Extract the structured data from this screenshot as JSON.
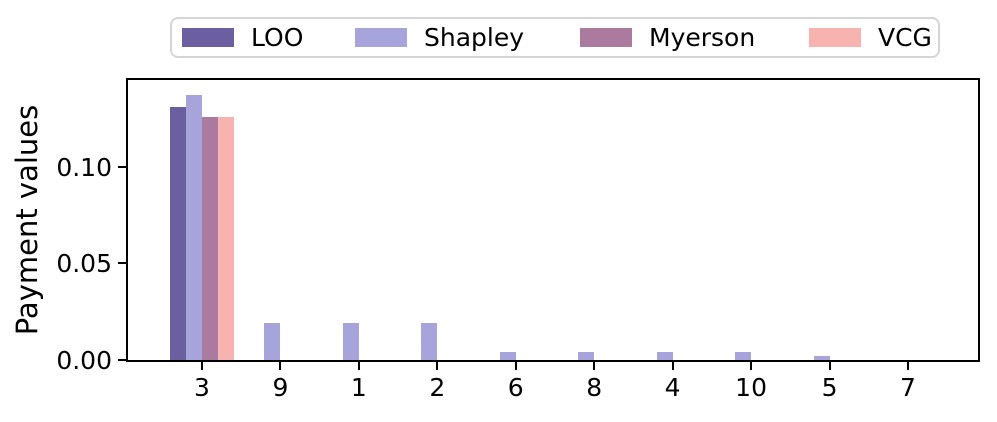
{
  "figure": {
    "ylabel": "Payment values"
  },
  "chart_data": {
    "type": "bar",
    "title": "",
    "xlabel": "",
    "ylabel": "Payment values",
    "categories": [
      "3",
      "9",
      "1",
      "2",
      "6",
      "8",
      "4",
      "10",
      "5",
      "7"
    ],
    "series": [
      {
        "name": "LOO",
        "color": "#6b5ea1",
        "values": [
          0.131,
          0,
          0,
          0,
          0,
          0,
          0,
          0,
          0,
          0
        ]
      },
      {
        "name": "Shapley",
        "color": "#a6a4da",
        "values": [
          0.137,
          0.019,
          0.019,
          0.019,
          0.004,
          0.004,
          0.004,
          0.004,
          0.002,
          0
        ]
      },
      {
        "name": "Myerson",
        "color": "#aa7a9f",
        "values": [
          0.126,
          0,
          0,
          0,
          0,
          0,
          0,
          0,
          0,
          0
        ]
      },
      {
        "name": "VCG",
        "color": "#f6b3b0",
        "values": [
          0.126,
          0,
          0,
          0,
          0,
          0,
          0,
          0,
          0,
          0
        ]
      }
    ],
    "ylim": [
      0,
      0.145
    ],
    "yticks": [
      {
        "value": 0.0,
        "label": "0.00"
      },
      {
        "value": 0.05,
        "label": "0.05"
      },
      {
        "value": 0.1,
        "label": "0.10"
      }
    ],
    "legend_position": "top",
    "grid": false,
    "colors": {
      "spine": "#000000",
      "legend_border": "#d5d5d5",
      "background": "#ffffff"
    }
  }
}
